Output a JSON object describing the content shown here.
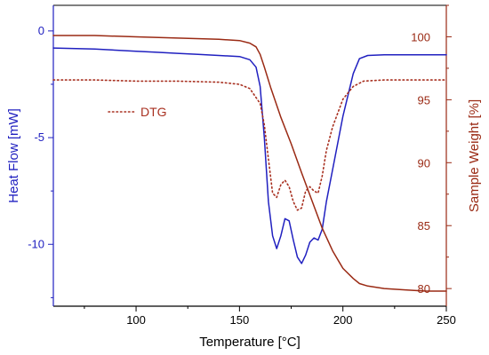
{
  "chart_data": {
    "type": "line",
    "title": "",
    "xlabel": "Temperature [°C]",
    "ylabel_left": "Heat Flow [mW]",
    "ylabel_right": "Sample Weight [%]",
    "xlim": [
      60,
      250
    ],
    "ylim_left": [
      -12.9,
      1.2
    ],
    "ylim_right": [
      78.6,
      102.5
    ],
    "grid": false,
    "legend_position": "center-left",
    "xticks": [
      100,
      150,
      200,
      250
    ],
    "yticks_left": [
      0,
      -5,
      -10
    ],
    "yticks_right": [
      100,
      95,
      90,
      85,
      80
    ],
    "colors": {
      "heat_flow": "#2020c0",
      "sample_weight": "#9a2a14",
      "dtg": "#a83020",
      "axis": "#000000"
    },
    "series": [
      {
        "name": "Heat Flow",
        "axis": "left",
        "color": "#2020c0",
        "style": "solid",
        "x": [
          60,
          80,
          100,
          110,
          120,
          130,
          140,
          150,
          155,
          158,
          160,
          162,
          164,
          166,
          168,
          170,
          172,
          174,
          176,
          178,
          180,
          182,
          184,
          186,
          188,
          190,
          192,
          195,
          200,
          205,
          208,
          212,
          220,
          230,
          240,
          250
        ],
        "y": [
          -0.8,
          -0.85,
          -0.95,
          -1.0,
          -1.05,
          -1.1,
          -1.15,
          -1.2,
          -1.35,
          -1.7,
          -2.6,
          -5.0,
          -8.0,
          -9.6,
          -10.2,
          -9.6,
          -8.8,
          -8.9,
          -9.8,
          -10.6,
          -10.9,
          -10.5,
          -9.9,
          -9.7,
          -9.8,
          -9.3,
          -8.0,
          -6.5,
          -4.0,
          -2.0,
          -1.3,
          -1.15,
          -1.12,
          -1.12,
          -1.12,
          -1.12
        ]
      },
      {
        "name": "Sample Weight",
        "axis": "right",
        "color": "#9a2a14",
        "style": "solid",
        "x": [
          60,
          80,
          100,
          120,
          140,
          150,
          155,
          158,
          160,
          162,
          165,
          170,
          175,
          180,
          185,
          190,
          195,
          200,
          205,
          208,
          212,
          220,
          230,
          240,
          250
        ],
        "y": [
          100.1,
          100.1,
          100.0,
          99.9,
          99.8,
          99.7,
          99.5,
          99.2,
          98.6,
          97.6,
          96.0,
          93.6,
          91.5,
          89.2,
          87.0,
          84.8,
          83.0,
          81.6,
          80.8,
          80.4,
          80.2,
          80.0,
          79.9,
          79.8,
          79.8
        ]
      },
      {
        "name": "DTG",
        "axis": "left",
        "color": "#a83020",
        "style": "dotted",
        "x": [
          60,
          80,
          100,
          120,
          140,
          150,
          155,
          160,
          162,
          164,
          166,
          168,
          170,
          172,
          174,
          176,
          178,
          180,
          182,
          184,
          186,
          188,
          190,
          192,
          195,
          200,
          205,
          210,
          220,
          230,
          240,
          250
        ],
        "y": [
          -2.3,
          -2.3,
          -2.35,
          -2.35,
          -2.4,
          -2.5,
          -2.7,
          -3.4,
          -4.4,
          -6.0,
          -7.6,
          -7.8,
          -7.2,
          -7.0,
          -7.3,
          -8.0,
          -8.4,
          -8.3,
          -7.5,
          -7.3,
          -7.5,
          -7.6,
          -6.8,
          -5.6,
          -4.5,
          -3.2,
          -2.6,
          -2.35,
          -2.3,
          -2.3,
          -2.3,
          -2.3
        ]
      }
    ]
  }
}
